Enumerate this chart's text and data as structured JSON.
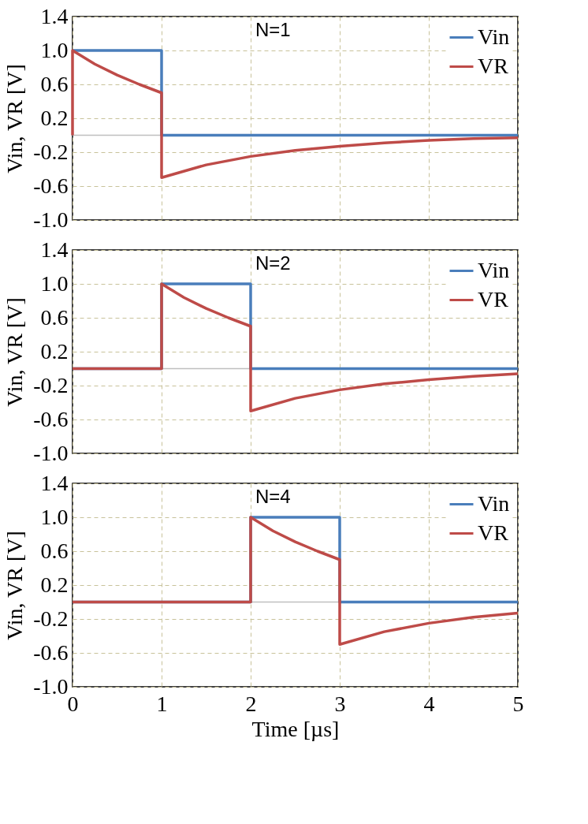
{
  "chart_data": [
    {
      "type": "line",
      "title": "N=1",
      "ylabel": "Vin, VR [V]",
      "xlim": [
        0,
        5
      ],
      "xticks": [
        0,
        1,
        2,
        3,
        4,
        5
      ],
      "ylim": [
        -1.0,
        1.4
      ],
      "yticks": [
        {
          "value": -1.0,
          "label": "-1.0"
        },
        {
          "value": -0.6,
          "label": "-0.6"
        },
        {
          "value": -0.2,
          "label": "-0.2"
        },
        {
          "value": 0.2,
          "label": "0.2"
        },
        {
          "value": 0.6,
          "label": "0.6"
        },
        {
          "value": 1.0,
          "label": "1.0"
        },
        {
          "value": 1.4,
          "label": "1.4"
        }
      ],
      "tick_labels": "y",
      "grid": true,
      "legend": "top right",
      "line_style": "solid",
      "marker": "none",
      "ref_lines": [
        {
          "axis": "y",
          "value": 0,
          "label": null,
          "color": "#bfbfbf"
        }
      ],
      "series": [
        {
          "name": "Vin",
          "color": "#4a7ebb",
          "x": [
            0,
            1,
            1,
            5
          ],
          "values": [
            1,
            1,
            0,
            0
          ]
        },
        {
          "name": "VR",
          "color": "#be4b48",
          "x": [
            0,
            0,
            0.25,
            0.5,
            0.75,
            1,
            1,
            1.5,
            2,
            2.5,
            3,
            3.5,
            4,
            4.5,
            5
          ],
          "values": [
            0,
            1,
            0.84,
            0.71,
            0.6,
            0.5,
            -0.5,
            -0.35,
            -0.25,
            -0.18,
            -0.13,
            -0.09,
            -0.06,
            -0.04,
            -0.03
          ]
        }
      ]
    },
    {
      "type": "line",
      "title": "N=2",
      "ylabel": "Vin, VR [V]",
      "xlim": [
        0,
        5
      ],
      "xticks": [
        0,
        1,
        2,
        3,
        4,
        5
      ],
      "ylim": [
        -1.0,
        1.4
      ],
      "yticks": [
        {
          "value": -1.0,
          "label": "-1.0"
        },
        {
          "value": -0.6,
          "label": "-0.6"
        },
        {
          "value": -0.2,
          "label": "-0.2"
        },
        {
          "value": 0.2,
          "label": "0.2"
        },
        {
          "value": 0.6,
          "label": "0.6"
        },
        {
          "value": 1.0,
          "label": "1.0"
        },
        {
          "value": 1.4,
          "label": "1.4"
        }
      ],
      "tick_labels": "y",
      "grid": true,
      "legend": "top right",
      "line_style": "solid",
      "marker": "none",
      "ref_lines": [
        {
          "axis": "y",
          "value": 0,
          "label": null,
          "color": "#bfbfbf"
        }
      ],
      "series": [
        {
          "name": "Vin",
          "color": "#4a7ebb",
          "x": [
            0,
            1,
            1,
            2,
            2,
            5
          ],
          "values": [
            0,
            0,
            1,
            1,
            0,
            0
          ]
        },
        {
          "name": "VR",
          "color": "#be4b48",
          "x": [
            0,
            1,
            1,
            1.25,
            1.5,
            1.75,
            2,
            2,
            2.5,
            3,
            3.5,
            4,
            4.5,
            5
          ],
          "values": [
            0,
            0,
            1,
            0.84,
            0.71,
            0.6,
            0.5,
            -0.5,
            -0.35,
            -0.25,
            -0.18,
            -0.13,
            -0.09,
            -0.06
          ]
        }
      ]
    },
    {
      "type": "line",
      "title": "N=4",
      "ylabel": "Vin, VR [V]",
      "xlabel": "Time [µs]",
      "xlim": [
        0,
        5
      ],
      "xticks": [
        0,
        1,
        2,
        3,
        4,
        5
      ],
      "ylim": [
        -1.0,
        1.4
      ],
      "yticks": [
        {
          "value": -1.0,
          "label": "-1.0"
        },
        {
          "value": -0.6,
          "label": "-0.6"
        },
        {
          "value": -0.2,
          "label": "-0.2"
        },
        {
          "value": 0.2,
          "label": "0.2"
        },
        {
          "value": 0.6,
          "label": "0.6"
        },
        {
          "value": 1.0,
          "label": "1.0"
        },
        {
          "value": 1.4,
          "label": "1.4"
        }
      ],
      "grid": true,
      "legend": "top right",
      "line_style": "solid",
      "marker": "none",
      "ref_lines": [
        {
          "axis": "y",
          "value": 0,
          "label": null,
          "color": "#bfbfbf"
        }
      ],
      "series": [
        {
          "name": "Vin",
          "color": "#4a7ebb",
          "x": [
            0,
            2,
            2,
            3,
            3,
            5
          ],
          "values": [
            0,
            0,
            1,
            1,
            0,
            0
          ]
        },
        {
          "name": "VR",
          "color": "#be4b48",
          "x": [
            0,
            2,
            2,
            2.25,
            2.5,
            2.75,
            3,
            3,
            3.5,
            4,
            4.5,
            5
          ],
          "values": [
            0,
            0,
            1,
            0.84,
            0.71,
            0.6,
            0.5,
            -0.5,
            -0.35,
            -0.25,
            -0.18,
            -0.13
          ]
        }
      ]
    }
  ]
}
